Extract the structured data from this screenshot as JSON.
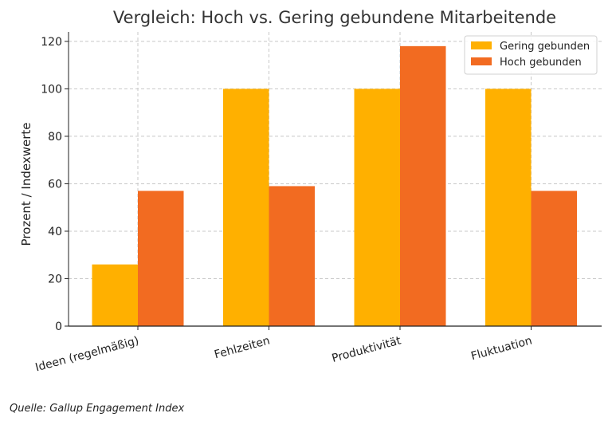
{
  "chart_data": {
    "type": "bar",
    "title": "Vergleich: Hoch vs. Gering gebundene Mitarbeitende",
    "xlabel": "",
    "ylabel": "Prozent / Indexwerte",
    "categories": [
      "Ideen (regelmäßig)",
      "Fehlzeiten",
      "Produktivität",
      "Fluktuation"
    ],
    "series": [
      {
        "name": "Gering gebunden",
        "values": [
          26,
          100,
          100,
          100
        ],
        "color": "#FFB000"
      },
      {
        "name": "Hoch gebunden",
        "values": [
          57,
          59,
          118,
          57
        ],
        "color": "#F26B21"
      }
    ],
    "ylim": [
      0,
      124
    ],
    "yticks": [
      0,
      20,
      40,
      60,
      80,
      100,
      120
    ],
    "grid": true,
    "legend": "top-right"
  },
  "footer": {
    "source": "Quelle: Gallup Engagement Index"
  }
}
